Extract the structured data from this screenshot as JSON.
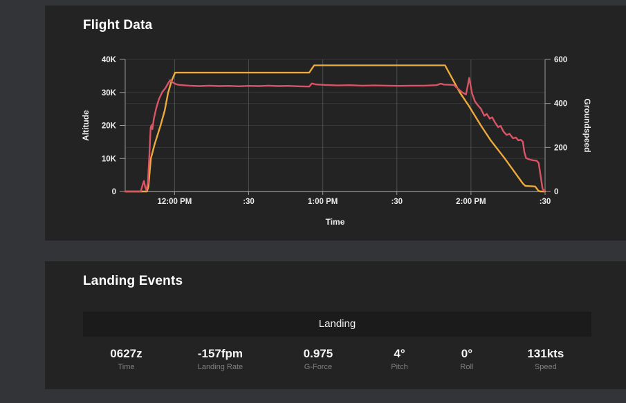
{
  "colors": {
    "background": "#333437",
    "panel": "#232324",
    "table_header": "#1b1b1c",
    "grid_minor": "#373737",
    "grid_vertical": "#4e4e4e",
    "axis_line": "#9a9a9a",
    "text_primary": "#f5f5f5",
    "text_muted": "#808083",
    "altitude_line": "#edaa3c",
    "groundspeed_line": "#d95565"
  },
  "flight_panel": {
    "title": "Flight Data"
  },
  "landing_panel": {
    "title": "Landing Events",
    "event_header": "Landing",
    "stats": [
      {
        "value": "0627z",
        "label": "Time"
      },
      {
        "value": "-157fpm",
        "label": "Landing Rate"
      },
      {
        "value": "0.975",
        "label": "G-Force"
      },
      {
        "value": "4°",
        "label": "Pitch"
      },
      {
        "value": "0°",
        "label": "Roll"
      },
      {
        "value": "131kts",
        "label": "Speed"
      }
    ]
  },
  "chart_data": {
    "type": "line",
    "title": "Flight Data",
    "xlabel": "Time",
    "x_unit": "minutes after 11:40 AM",
    "x_range": [
      0,
      170
    ],
    "x_ticks": [
      {
        "t": 20,
        "label": "12:00 PM"
      },
      {
        "t": 50,
        "label": ":30"
      },
      {
        "t": 80,
        "label": "1:00 PM"
      },
      {
        "t": 110,
        "label": ":30"
      },
      {
        "t": 140,
        "label": "2:00 PM"
      },
      {
        "t": 170,
        "label": ":30"
      }
    ],
    "grid": true,
    "legend": "none",
    "axes": {
      "left": {
        "label": "Altitude",
        "range": [
          0,
          40000
        ],
        "ticks": [
          {
            "v": 0,
            "label": "0"
          },
          {
            "v": 10000,
            "label": "10K"
          },
          {
            "v": 20000,
            "label": "20K"
          },
          {
            "v": 30000,
            "label": "30K"
          },
          {
            "v": 40000,
            "label": "40K"
          }
        ]
      },
      "right": {
        "label": "Groundspeed",
        "range": [
          0,
          600
        ],
        "ticks": [
          {
            "v": 0,
            "label": "0"
          },
          {
            "v": 200,
            "label": "200"
          },
          {
            "v": 400,
            "label": "400"
          },
          {
            "v": 600,
            "label": "600"
          }
        ]
      }
    },
    "series": [
      {
        "name": "Altitude",
        "axis": "left",
        "color": "#edaa3c",
        "points": [
          [
            0,
            0
          ],
          [
            8.8,
            0
          ],
          [
            9.4,
            1500
          ],
          [
            10.4,
            10000
          ],
          [
            12,
            14500
          ],
          [
            14.3,
            20000
          ],
          [
            16,
            24500
          ],
          [
            17.4,
            30000
          ],
          [
            18.8,
            33500
          ],
          [
            20.2,
            36000
          ],
          [
            74.5,
            36000
          ],
          [
            76.5,
            38200
          ],
          [
            129.5,
            38200
          ],
          [
            135.5,
            30000
          ],
          [
            138.9,
            26200
          ],
          [
            144,
            20000
          ],
          [
            148,
            15500
          ],
          [
            153.7,
            10000
          ],
          [
            158,
            5500
          ],
          [
            161,
            2400
          ],
          [
            162,
            1700
          ],
          [
            166,
            1500
          ],
          [
            167.3,
            200
          ],
          [
            168,
            0
          ],
          [
            170,
            0
          ]
        ]
      },
      {
        "name": "Groundspeed",
        "axis": "right",
        "color": "#d95565",
        "points": [
          [
            0,
            0
          ],
          [
            6.3,
            0
          ],
          [
            7,
            28
          ],
          [
            7.6,
            48
          ],
          [
            8.1,
            20
          ],
          [
            8.6,
            6
          ],
          [
            9.2,
            40
          ],
          [
            9.8,
            170
          ],
          [
            10.3,
            290
          ],
          [
            10.7,
            302
          ],
          [
            11,
            283
          ],
          [
            11.6,
            330
          ],
          [
            12.6,
            380
          ],
          [
            13.6,
            418
          ],
          [
            15,
            452
          ],
          [
            16.3,
            470
          ],
          [
            17.3,
            490
          ],
          [
            18.2,
            506
          ],
          [
            19.2,
            496
          ],
          [
            20.5,
            488
          ],
          [
            22,
            484
          ],
          [
            26,
            481
          ],
          [
            30,
            479
          ],
          [
            34,
            481
          ],
          [
            38,
            479
          ],
          [
            42,
            480
          ],
          [
            46,
            478
          ],
          [
            50,
            480
          ],
          [
            54,
            479
          ],
          [
            58,
            481
          ],
          [
            62,
            479
          ],
          [
            66,
            480
          ],
          [
            70,
            478
          ],
          [
            74.5,
            477
          ],
          [
            75.6,
            491
          ],
          [
            77,
            487
          ],
          [
            81,
            484
          ],
          [
            86,
            482
          ],
          [
            91,
            483
          ],
          [
            96,
            481
          ],
          [
            101,
            482
          ],
          [
            106,
            481
          ],
          [
            111,
            480
          ],
          [
            116,
            481
          ],
          [
            121,
            481
          ],
          [
            126,
            483
          ],
          [
            127.8,
            490
          ],
          [
            129,
            486
          ],
          [
            131,
            485
          ],
          [
            133,
            484
          ],
          [
            135,
            465
          ],
          [
            136.5,
            450
          ],
          [
            138,
            441
          ],
          [
            139.3,
            516
          ],
          [
            140.4,
            447
          ],
          [
            141.6,
            410
          ],
          [
            142.6,
            394
          ],
          [
            144,
            376
          ],
          [
            145.4,
            344
          ],
          [
            146.4,
            352
          ],
          [
            147.6,
            331
          ],
          [
            148.6,
            337
          ],
          [
            149.8,
            312
          ],
          [
            151,
            292
          ],
          [
            152,
            298
          ],
          [
            153.2,
            272
          ],
          [
            154.4,
            257
          ],
          [
            155.6,
            262
          ],
          [
            157,
            242
          ],
          [
            158.2,
            245
          ],
          [
            159.2,
            232
          ],
          [
            160.2,
            235
          ],
          [
            161,
            226
          ],
          [
            161.6,
            180
          ],
          [
            162.3,
            152
          ],
          [
            163.5,
            146
          ],
          [
            165,
            142
          ],
          [
            166.5,
            140
          ],
          [
            167.4,
            130
          ],
          [
            168.2,
            70
          ],
          [
            169,
            12
          ],
          [
            169.8,
            2
          ]
        ]
      }
    ]
  }
}
